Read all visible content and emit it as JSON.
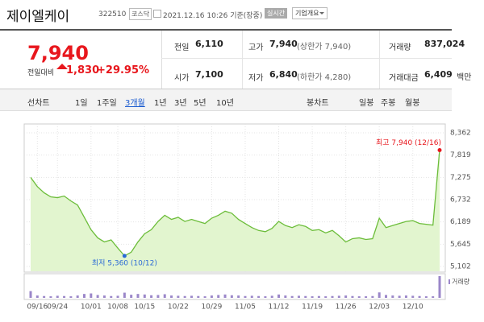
{
  "header": {
    "name": "제이엘케이",
    "code": "322510",
    "market": "코스닥",
    "timestamp": "2021.12.16 10:26 기준(장중)",
    "buttons": [
      "실시간",
      "기업개요"
    ]
  },
  "quote": {
    "price": "7,940",
    "change_label": "전일대비",
    "change": "1,830",
    "change_rate": "+29.95%",
    "stats": [
      {
        "label": "전일",
        "value": "6,110"
      },
      {
        "label": "고가",
        "value": "7,940",
        "note": "(상한가 7,940)"
      },
      {
        "label": "거래량",
        "value": "837,024"
      },
      {
        "label": "시가",
        "value": "7,100"
      },
      {
        "label": "저가",
        "value": "6,840",
        "note": "(하한가 4,280)"
      },
      {
        "label": "거래대금",
        "value": "6,409",
        "unit": "백만"
      }
    ]
  },
  "tabs": {
    "line_label": "선차트",
    "line_periods": [
      "1일",
      "1주일",
      "3개월",
      "1년",
      "3년",
      "5년",
      "10년"
    ],
    "selected": 2,
    "candle_label": "봉차트",
    "candle_periods": [
      "일봉",
      "주봉",
      "월봉"
    ]
  },
  "chart_data": {
    "type": "line",
    "color": "#6cbd3a",
    "fill": "#e2f5cf",
    "categories": [
      null,
      "09/16",
      null,
      null,
      "09/24",
      null,
      null,
      null,
      null,
      "10/01",
      null,
      null,
      null,
      "10/08",
      null,
      null,
      null,
      "10/15",
      null,
      null,
      null,
      null,
      "10/22",
      null,
      null,
      null,
      null,
      "10/29",
      null,
      null,
      null,
      null,
      "11/05",
      null,
      null,
      null,
      null,
      "11/12",
      null,
      null,
      null,
      null,
      "11/19",
      null,
      null,
      null,
      null,
      "11/26",
      null,
      null,
      null,
      null,
      "12/03",
      null,
      null,
      null,
      null,
      "12/10",
      null,
      null,
      null,
      null
    ],
    "values": [
      7275,
      7050,
      6900,
      6800,
      6780,
      6820,
      6700,
      6600,
      6300,
      6000,
      5800,
      5700,
      5750,
      5550,
      5360,
      5450,
      5700,
      5900,
      6000,
      6200,
      6350,
      6250,
      6300,
      6200,
      6250,
      6200,
      6150,
      6280,
      6350,
      6450,
      6400,
      6250,
      6150,
      6050,
      5980,
      5950,
      6030,
      6200,
      6100,
      6050,
      6120,
      6080,
      5980,
      6000,
      5920,
      5980,
      5850,
      5700,
      5780,
      5800,
      5760,
      5780,
      6280,
      6050,
      6100,
      6150,
      6200,
      6220,
      6150,
      6130,
      6110,
      7940
    ],
    "ylim": [
      5102,
      8362
    ],
    "yticks": [
      {
        "value": 5102,
        "label": "5,102"
      },
      {
        "value": 5645,
        "label": "5,645"
      },
      {
        "value": 6189,
        "label": "6,189"
      },
      {
        "value": 6732,
        "label": "6,732"
      },
      {
        "value": 7275,
        "label": "7,275"
      },
      {
        "value": 7819,
        "label": "7,819"
      },
      {
        "value": 8362,
        "label": "8,362"
      }
    ],
    "grid": true,
    "max_label": "최고 7,940 (12/16)",
    "min_label": "최저 5,360 (10/12)",
    "volume": {
      "label": "거래량",
      "color": "#9b87c9",
      "values": [
        260000,
        90000,
        70000,
        60000,
        80000,
        70000,
        60000,
        90000,
        150000,
        170000,
        110000,
        90000,
        70000,
        80000,
        200000,
        120000,
        150000,
        130000,
        100000,
        110000,
        140000,
        90000,
        80000,
        70000,
        80000,
        70000,
        60000,
        90000,
        110000,
        130000,
        100000,
        90000,
        70000,
        80000,
        70000,
        60000,
        80000,
        130000,
        90000,
        70000,
        80000,
        70000,
        60000,
        70000,
        60000,
        70000,
        80000,
        90000,
        70000,
        60000,
        60000,
        70000,
        210000,
        110000,
        90000,
        80000,
        90000,
        80000,
        70000,
        60000,
        60000,
        837024
      ]
    }
  }
}
